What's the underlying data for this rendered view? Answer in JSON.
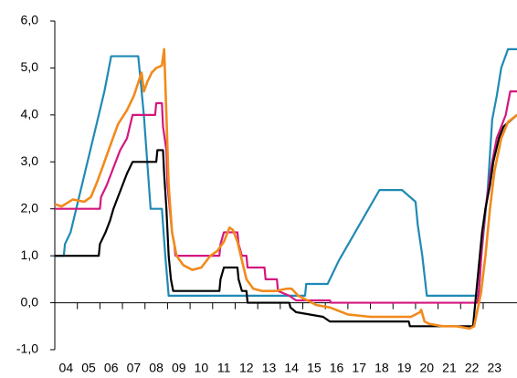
{
  "chart_data": {
    "type": "line",
    "xlim": [
      4,
      24.5
    ],
    "xticks": [
      {
        "value": 4,
        "label": "04"
      },
      {
        "value": 5,
        "label": "05"
      },
      {
        "value": 6,
        "label": "06"
      },
      {
        "value": 7,
        "label": "07"
      },
      {
        "value": 8,
        "label": "08"
      },
      {
        "value": 9,
        "label": "09"
      },
      {
        "value": 10,
        "label": "10"
      },
      {
        "value": 11,
        "label": "11"
      },
      {
        "value": 12,
        "label": "12"
      },
      {
        "value": 13,
        "label": "13"
      },
      {
        "value": 14,
        "label": "14"
      },
      {
        "value": 15,
        "label": "15"
      },
      {
        "value": 16,
        "label": "16"
      },
      {
        "value": 17,
        "label": "17"
      },
      {
        "value": 18,
        "label": "18"
      },
      {
        "value": 19,
        "label": "19"
      },
      {
        "value": 20,
        "label": "20"
      },
      {
        "value": 21,
        "label": "21"
      },
      {
        "value": 22,
        "label": "22"
      },
      {
        "value": 23,
        "label": "23"
      }
    ],
    "ylim": [
      -1,
      6
    ],
    "yticks": [
      {
        "value": -1,
        "label": "-1,0"
      },
      {
        "value": 0,
        "label": "0,0"
      },
      {
        "value": 1,
        "label": "1,0"
      },
      {
        "value": 2,
        "label": "2,0"
      },
      {
        "value": 3,
        "label": "3,0"
      },
      {
        "value": 4,
        "label": "4,0"
      },
      {
        "value": 5,
        "label": "5,0"
      },
      {
        "value": 6,
        "label": "6,0"
      }
    ],
    "grid": false,
    "series": [
      {
        "color": "#1f8ab5",
        "x": [
          4,
          4.4,
          4.45,
          4.7,
          4.95,
          5.2,
          5.45,
          5.7,
          5.95,
          6.2,
          6.5,
          7.7,
          7.8,
          7.95,
          8.1,
          8.25,
          8.75,
          8.9,
          9.05,
          15.1,
          15.15,
          16.1,
          16.35,
          16.6,
          16.9,
          17.2,
          17.5,
          17.8,
          18.1,
          18.4,
          19.4,
          20.0,
          20.1,
          20.3,
          20.5,
          22.8,
          22.9,
          23.05,
          23.2,
          23.4,
          23.6,
          23.8,
          24.1,
          24.5
        ],
        "values": [
          1.0,
          1.0,
          1.25,
          1.5,
          2.0,
          2.5,
          3.0,
          3.5,
          4.0,
          4.5,
          5.25,
          5.25,
          4.75,
          4.0,
          3.0,
          2.0,
          2.0,
          1.0,
          0.15,
          0.15,
          0.4,
          0.4,
          0.65,
          0.9,
          1.15,
          1.4,
          1.65,
          1.9,
          2.15,
          2.4,
          2.4,
          2.15,
          1.65,
          1.0,
          0.15,
          0.15,
          0.9,
          1.65,
          2.4,
          3.9,
          4.4,
          5.0,
          5.4,
          5.4
        ]
      },
      {
        "color": "#d4177f",
        "x": [
          4,
          6.0,
          6.05,
          6.3,
          6.5,
          6.7,
          6.9,
          7.2,
          7.45,
          8.45,
          8.5,
          8.75,
          8.8,
          8.95,
          9.0,
          9.1,
          9.2,
          9.3,
          9.35,
          11.3,
          11.35,
          11.5,
          12.1,
          12.15,
          12.3,
          12.5,
          12.55,
          13.3,
          13.35,
          13.85,
          13.9,
          14.4,
          14.7,
          16.2,
          16.25,
          22.75,
          22.85,
          22.95,
          23.1,
          23.25,
          23.4,
          23.6,
          23.8,
          24.0,
          24.2,
          24.5
        ],
        "values": [
          2.0,
          2.0,
          2.25,
          2.5,
          2.75,
          3.0,
          3.25,
          3.5,
          4.0,
          4.0,
          4.25,
          4.25,
          3.75,
          3.25,
          2.5,
          2.0,
          1.5,
          1.25,
          1.0,
          1.0,
          1.25,
          1.5,
          1.5,
          1.25,
          1.0,
          1.0,
          0.75,
          0.75,
          0.5,
          0.5,
          0.25,
          0.15,
          0.05,
          0.05,
          0.0,
          0.0,
          0.5,
          1.25,
          2.0,
          2.5,
          3.0,
          3.5,
          3.75,
          4.0,
          4.5,
          4.5
        ]
      },
      {
        "color": "#000000",
        "x": [
          4,
          5.95,
          6.0,
          6.25,
          6.45,
          6.6,
          6.8,
          7.0,
          7.2,
          7.45,
          8.5,
          8.55,
          8.8,
          8.85,
          8.95,
          9.05,
          9.15,
          9.25,
          11.3,
          11.35,
          11.5,
          12.1,
          12.15,
          12.3,
          12.5,
          12.55,
          14.4,
          14.45,
          14.7,
          15.9,
          16.2,
          19.7,
          19.75,
          22.55,
          22.65,
          22.8,
          22.95,
          23.1,
          23.3,
          23.45,
          23.7,
          23.9,
          24.5
        ],
        "values": [
          1.0,
          1.0,
          1.25,
          1.5,
          1.75,
          2.0,
          2.25,
          2.5,
          2.75,
          3.0,
          3.0,
          3.25,
          3.25,
          2.75,
          2.0,
          1.0,
          0.5,
          0.25,
          0.25,
          0.5,
          0.75,
          0.75,
          0.5,
          0.25,
          0.25,
          0.0,
          0.0,
          -0.1,
          -0.2,
          -0.3,
          -0.4,
          -0.4,
          -0.5,
          -0.5,
          0.0,
          0.75,
          1.5,
          2.0,
          2.5,
          3.0,
          3.5,
          3.75,
          4.0
        ]
      },
      {
        "color": "#f28a1c",
        "x": [
          4,
          4.3,
          4.8,
          5.3,
          5.6,
          5.9,
          6.2,
          6.5,
          6.8,
          7.2,
          7.5,
          7.85,
          7.95,
          8.1,
          8.3,
          8.5,
          8.75,
          8.85,
          8.95,
          9.05,
          9.2,
          9.4,
          9.7,
          10.1,
          10.5,
          10.9,
          11.2,
          11.5,
          11.75,
          11.9,
          12.1,
          12.3,
          12.5,
          12.8,
          13.2,
          13.8,
          14.3,
          14.5,
          14.8,
          15.2,
          15.6,
          16.2,
          17.0,
          18.0,
          19.0,
          19.8,
          20.2,
          20.25,
          20.4,
          20.6,
          21.2,
          21.8,
          22.4,
          22.6,
          22.9,
          23.1,
          23.3,
          23.5,
          23.8,
          24.1,
          24.5
        ],
        "values": [
          2.1,
          2.05,
          2.2,
          2.15,
          2.25,
          2.6,
          3.0,
          3.4,
          3.8,
          4.1,
          4.4,
          4.9,
          4.5,
          4.7,
          4.9,
          5.0,
          5.05,
          5.4,
          4.0,
          2.5,
          1.5,
          1.0,
          0.8,
          0.7,
          0.75,
          1.0,
          1.1,
          1.3,
          1.6,
          1.55,
          1.3,
          0.9,
          0.5,
          0.3,
          0.25,
          0.25,
          0.3,
          0.3,
          0.15,
          0.05,
          -0.05,
          -0.1,
          -0.25,
          -0.3,
          -0.3,
          -0.3,
          -0.2,
          -0.15,
          -0.4,
          -0.45,
          -0.5,
          -0.5,
          -0.55,
          -0.5,
          0.2,
          1.0,
          2.0,
          2.8,
          3.5,
          3.85,
          4.0
        ]
      }
    ]
  }
}
